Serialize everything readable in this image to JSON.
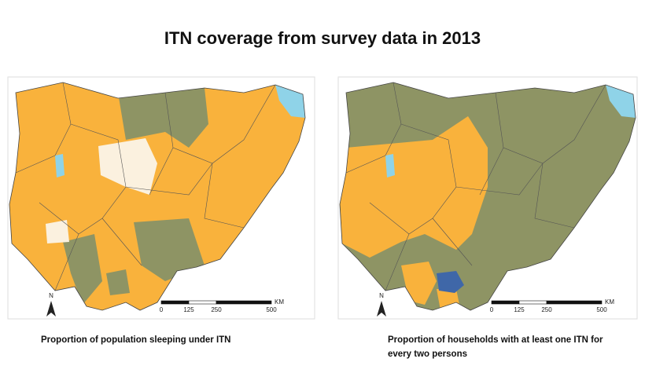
{
  "title": "ITN coverage from survey data in 2013",
  "maps": [
    {
      "caption": "Proportion of population sleeping under ITN",
      "north": "N",
      "scale_unit": "KM",
      "scale_ticks": [
        0,
        125,
        250,
        500
      ]
    },
    {
      "caption": "Proportion of households with at least one ITN for every two persons",
      "north": "N",
      "scale_unit": "KM",
      "scale_ticks": [
        0,
        125,
        250,
        500
      ]
    }
  ]
}
